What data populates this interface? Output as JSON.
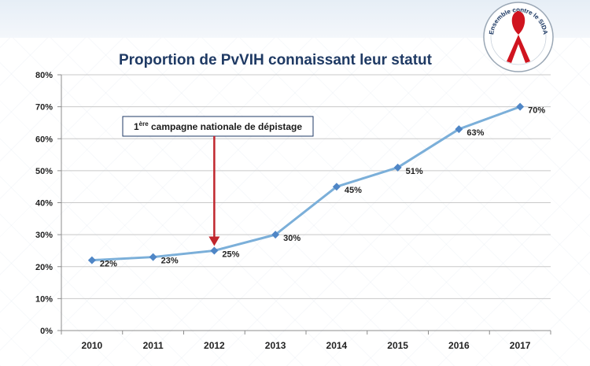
{
  "chart_data": {
    "type": "line",
    "title": "Proportion de PvVIH connaissant leur statut",
    "categories": [
      "2010",
      "2011",
      "2012",
      "2013",
      "2014",
      "2015",
      "2016",
      "2017"
    ],
    "values": [
      22,
      23,
      25,
      30,
      45,
      51,
      63,
      70
    ],
    "data_labels": [
      "22%",
      "23%",
      "25%",
      "30%",
      "45%",
      "51%",
      "63%",
      "70%"
    ],
    "yticks": [
      0,
      10,
      20,
      30,
      40,
      50,
      60,
      70,
      80
    ],
    "ytick_labels": [
      "0%",
      "10%",
      "20%",
      "30%",
      "40%",
      "50%",
      "60%",
      "70%",
      "80%"
    ],
    "ylim": [
      0,
      80
    ],
    "grid": true,
    "line_color": "#7bafd9",
    "marker_color": "#4f86c6",
    "annotation": {
      "main": "1",
      "superscript": "ère",
      "rest": " campagne nationale de dépistage",
      "target": "2012",
      "arrow_color": "#c0262d"
    }
  },
  "logo": {
    "text": "Ensemble contre le SIDA",
    "ribbon_color": "#d0141f"
  }
}
